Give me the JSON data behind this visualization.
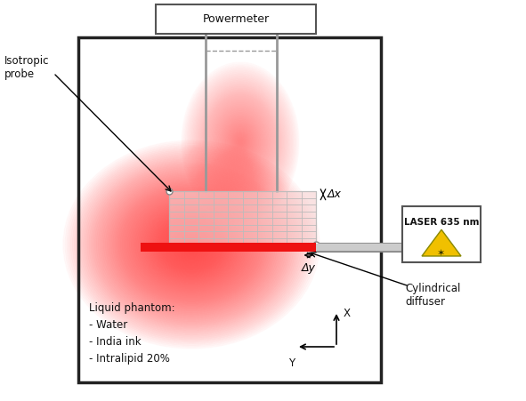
{
  "fig_width": 5.91,
  "fig_height": 4.51,
  "bg_color": "#ffffff",
  "powermeter_label": "Powermeter",
  "isotropic_probe_label": "Isotropic\nprobe",
  "laser_label": "LASER 635 nm",
  "cylindrical_diffuser_label": "Cylindrical\ndiffuser",
  "liquid_phantom_label": "Liquid phantom:\n- Water\n- India ink\n- Intralipid 20%",
  "dx_label": "Δx",
  "dy_label": "Δy",
  "tank_edge_color": "#222222",
  "grid_color": "#bbbbbb",
  "font_size_main": 9,
  "font_size_label": 8.5
}
